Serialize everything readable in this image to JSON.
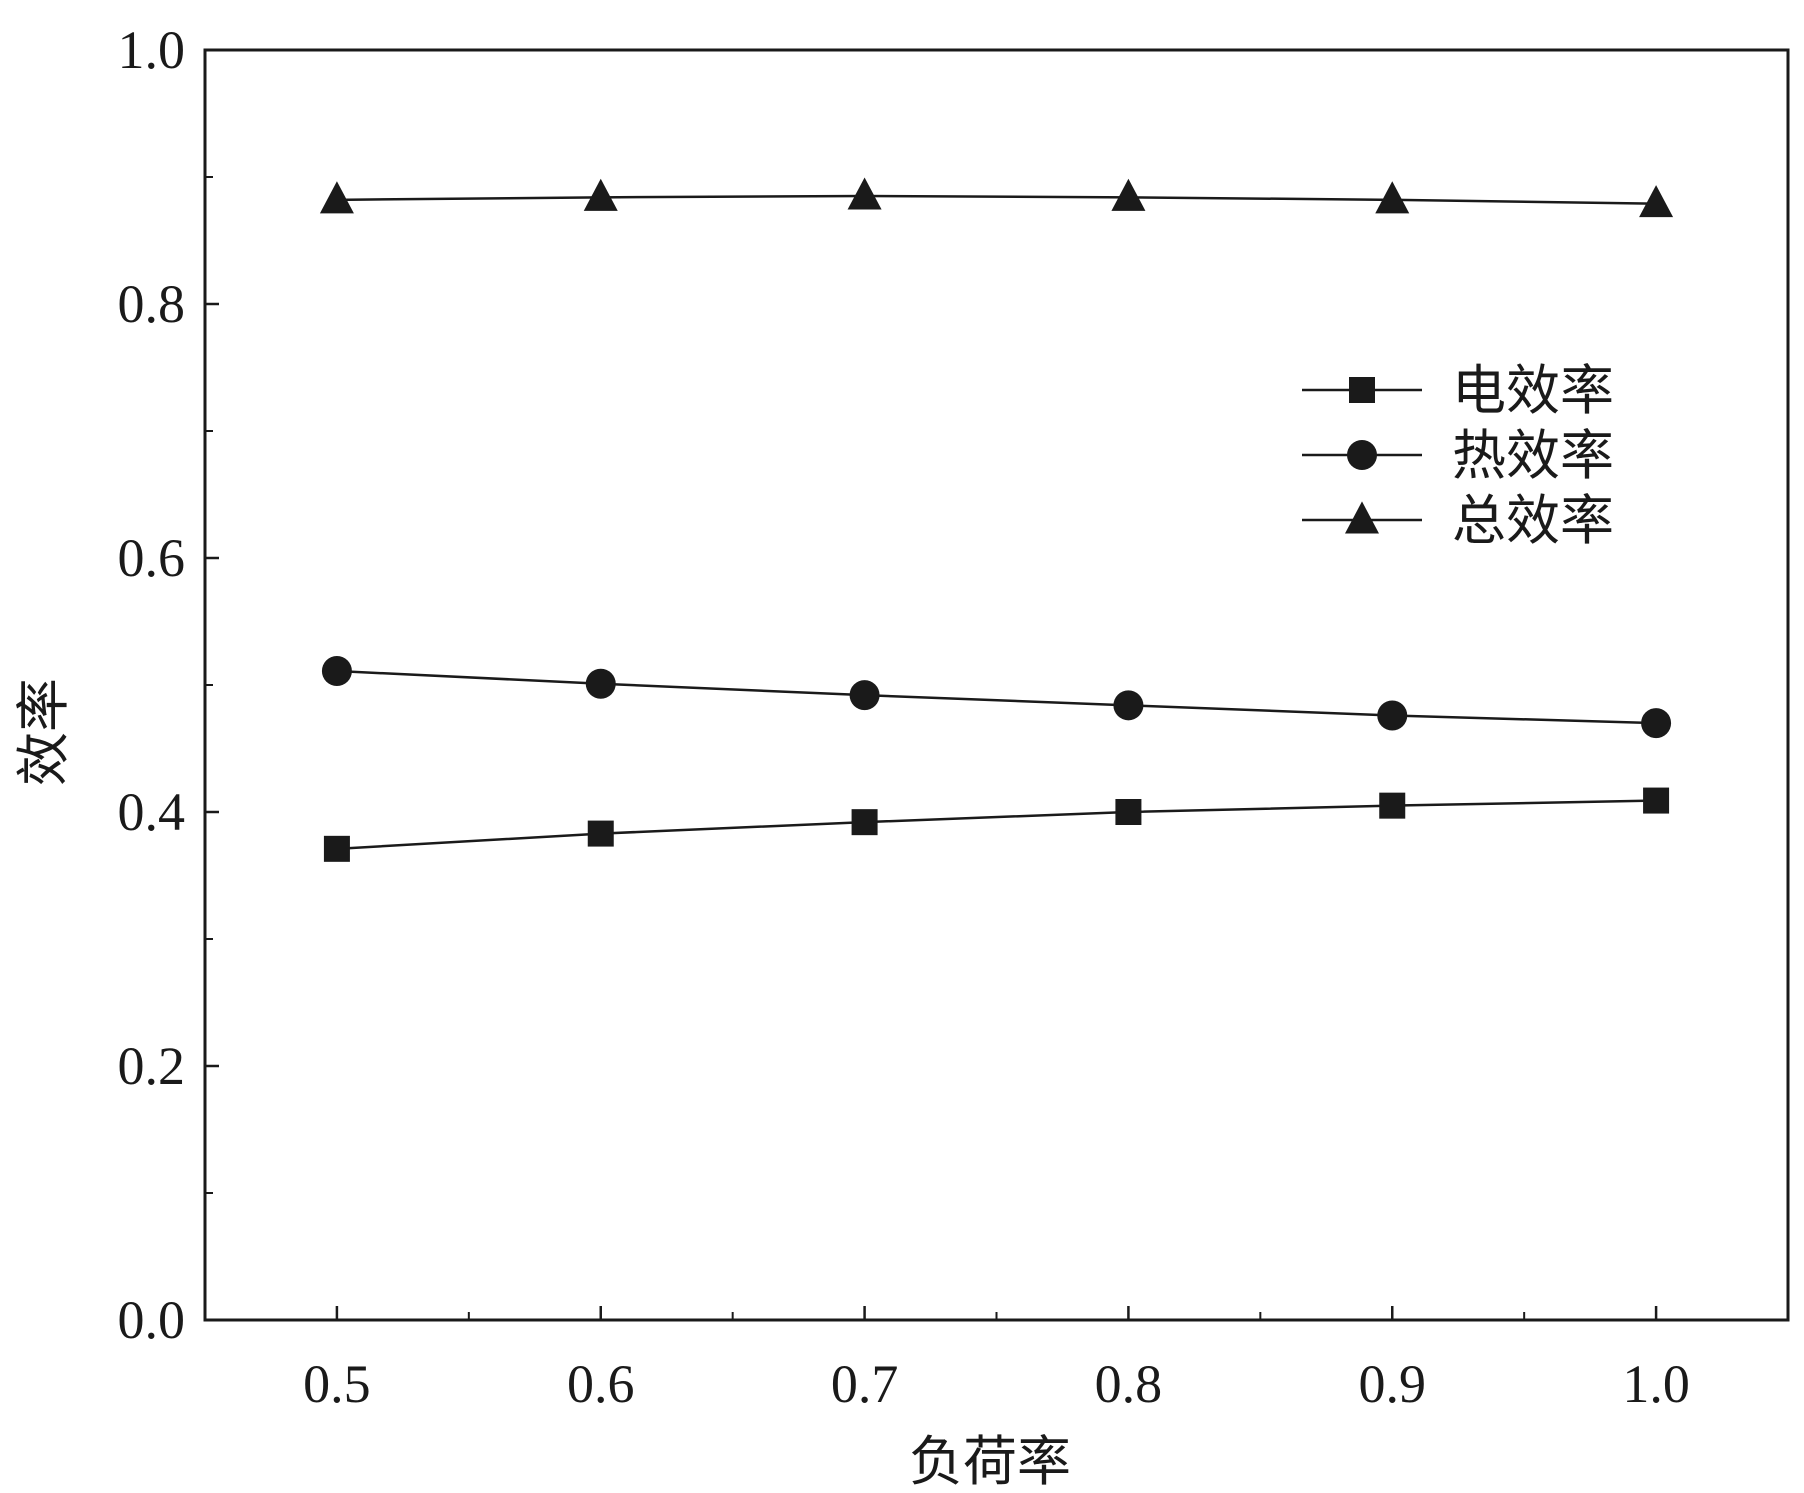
{
  "chart_data": {
    "type": "line",
    "xlabel": "负荷率",
    "ylabel": "效率",
    "xlim": [
      0.45,
      1.05
    ],
    "ylim": [
      0.0,
      1.0
    ],
    "x_ticks": [
      "0.5",
      "0.6",
      "0.7",
      "0.8",
      "0.9",
      "1.0"
    ],
    "y_ticks": [
      "0.0",
      "0.2",
      "0.4",
      "0.6",
      "0.8",
      "1.0"
    ],
    "x": [
      0.5,
      0.6,
      0.7,
      0.8,
      0.9,
      1.0
    ],
    "series": [
      {
        "name": "电效率",
        "marker": "square",
        "values": [
          0.371,
          0.383,
          0.392,
          0.4,
          0.405,
          0.409
        ]
      },
      {
        "name": "热效率",
        "marker": "circle",
        "values": [
          0.511,
          0.501,
          0.492,
          0.484,
          0.476,
          0.47
        ]
      },
      {
        "name": "总效率",
        "marker": "triangle",
        "values": [
          0.882,
          0.884,
          0.885,
          0.884,
          0.882,
          0.879
        ]
      }
    ],
    "legend_position": "upper-right",
    "grid": false,
    "color": "#1a1a1a"
  }
}
